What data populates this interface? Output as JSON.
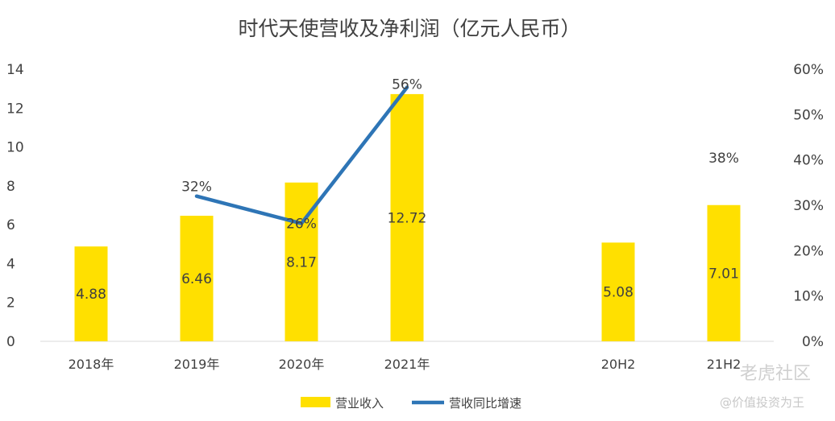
{
  "chart_data": {
    "type": "bar",
    "title": "时代天使营收及净利润（亿元人民币）",
    "categories": [
      "2018年",
      "2019年",
      "2020年",
      "2021年",
      "",
      "20H2",
      "21H2"
    ],
    "series": [
      {
        "name": "营业收入",
        "kind": "bar",
        "axis": "left",
        "color": "#FFE000",
        "values": [
          4.88,
          6.46,
          8.17,
          12.72,
          null,
          5.08,
          7.01
        ],
        "labels": [
          "4.88",
          "6.46",
          "8.17",
          "12.72",
          "",
          "5.08",
          "7.01"
        ]
      },
      {
        "name": "营收同比增速",
        "kind": "line",
        "axis": "right",
        "color": "#2E75B6",
        "values": [
          null,
          32,
          26,
          56,
          null,
          null,
          38
        ],
        "labels": [
          "",
          "32%",
          "26%",
          "56%",
          "",
          "",
          "38%"
        ]
      }
    ],
    "y_left": {
      "min": 0,
      "max": 14,
      "step": 2,
      "ticks": [
        "0",
        "2",
        "4",
        "6",
        "8",
        "10",
        "12",
        "14"
      ]
    },
    "y_right": {
      "min": 0,
      "max": 60,
      "step": 10,
      "ticks": [
        "0%",
        "10%",
        "20%",
        "30%",
        "40%",
        "50%",
        "60%"
      ]
    },
    "grid": false,
    "legend": "bottom"
  },
  "watermark": {
    "line1": "老虎社区",
    "line2": "@价值投资为王"
  }
}
